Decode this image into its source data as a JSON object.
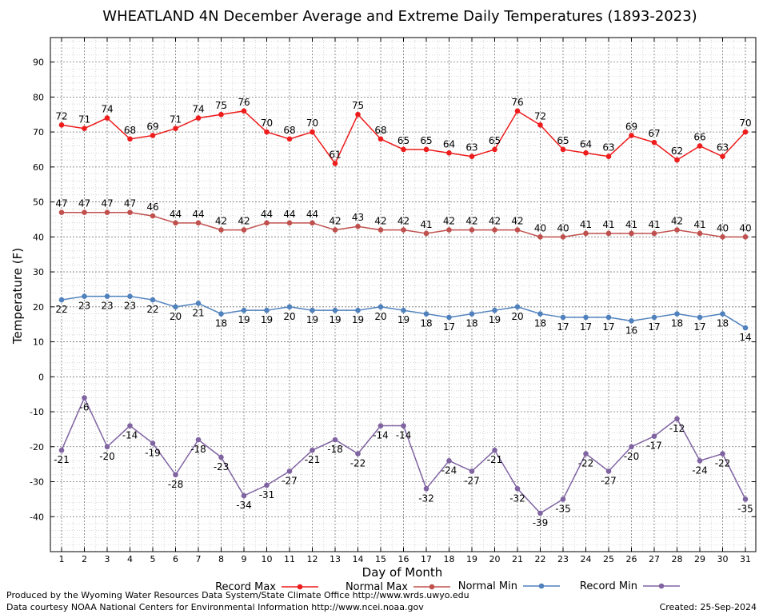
{
  "chart_data": {
    "type": "line",
    "title": "WHEATLAND 4N December Average and Extreme Daily Temperatures (1893-2023)",
    "xlabel": "Day of Month",
    "ylabel": "Temperature (F)",
    "ylim": [
      -50,
      97
    ],
    "yticks": [
      -40,
      -30,
      -20,
      -10,
      0,
      10,
      20,
      30,
      40,
      50,
      60,
      70,
      80,
      90
    ],
    "x": [
      1,
      2,
      3,
      4,
      5,
      6,
      7,
      8,
      9,
      10,
      11,
      12,
      13,
      14,
      15,
      16,
      17,
      18,
      19,
      20,
      21,
      22,
      23,
      24,
      25,
      26,
      27,
      28,
      29,
      30,
      31
    ],
    "grid": true,
    "legend_position": "bottom",
    "series": [
      {
        "name": "Record Max",
        "color": "#ee1c1c",
        "values": [
          72,
          71,
          74,
          68,
          69,
          71,
          74,
          75,
          76,
          70,
          68,
          70,
          61,
          75,
          68,
          65,
          65,
          64,
          63,
          65,
          76,
          72,
          65,
          64,
          63,
          69,
          67,
          62,
          66,
          63,
          70
        ]
      },
      {
        "name": "Normal Max",
        "color": "#c0504d",
        "values": [
          47,
          47,
          47,
          47,
          46,
          44,
          44,
          42,
          42,
          44,
          44,
          44,
          42,
          43,
          42,
          42,
          41,
          42,
          42,
          42,
          42,
          40,
          40,
          41,
          41,
          41,
          41,
          42,
          41,
          40,
          40
        ]
      },
      {
        "name": "Normal Min",
        "color": "#4f81bd",
        "values": [
          22,
          23,
          23,
          23,
          22,
          20,
          21,
          18,
          19,
          19,
          20,
          19,
          19,
          19,
          20,
          19,
          18,
          17,
          18,
          19,
          20,
          18,
          17,
          17,
          17,
          16,
          17,
          18,
          17,
          18,
          14
        ]
      },
      {
        "name": "Record Min",
        "color": "#8064a2",
        "values": [
          -21,
          -6,
          -20,
          -14,
          -19,
          -28,
          -18,
          -23,
          -34,
          -31,
          -27,
          -21,
          -18,
          -22,
          -14,
          -14,
          -32,
          -24,
          -27,
          -21,
          -32,
          -39,
          -35,
          -22,
          -27,
          -20,
          -17,
          -12,
          -24,
          -22,
          -35
        ]
      }
    ]
  },
  "footer": {
    "left_line1": "Produced by the Wyoming Water Resources Data System/State Climate Office http://www.wrds.uwyo.edu",
    "left_line2": "Data courtesy NOAA National Centers for Environmental Information http://www.ncei.noaa.gov",
    "created": "Created:  25-Sep-2024"
  }
}
